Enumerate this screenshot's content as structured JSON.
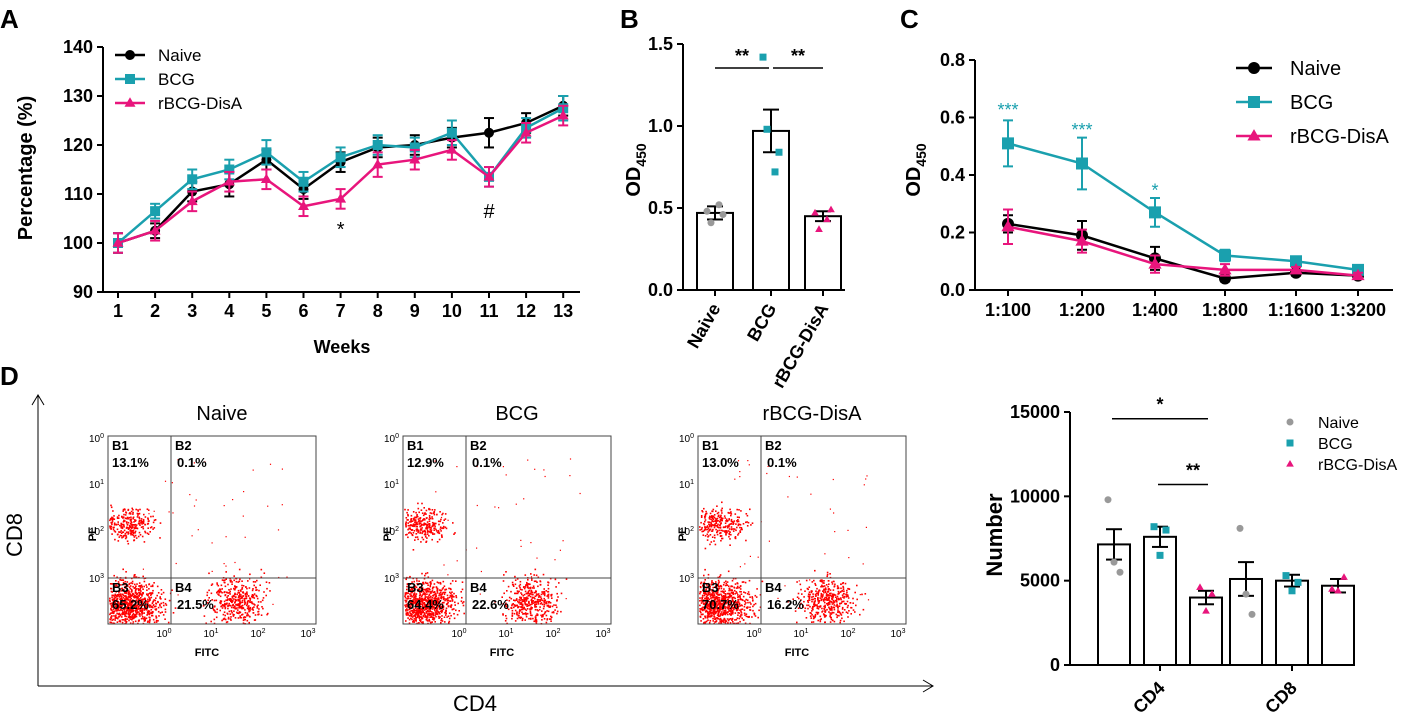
{
  "colors": {
    "naive": "#000000",
    "bcg": "#1aa0ae",
    "disa": "#e8157c",
    "flow": "#ff0000",
    "grey": "#999999"
  },
  "chart_data": [
    {
      "panel": "A",
      "type": "line",
      "xlabel": "Weeks",
      "ylabel": "Percentage (%)",
      "ylim": [
        90,
        140
      ],
      "yticks": [
        90,
        100,
        110,
        120,
        130,
        140
      ],
      "x": [
        1,
        2,
        3,
        4,
        5,
        6,
        7,
        8,
        9,
        10,
        11,
        12,
        13
      ],
      "series": [
        {
          "name": "Naive",
          "color_key": "naive",
          "marker": "circle",
          "values": [
            100,
            102.5,
            110.5,
            112,
            117,
            111,
            116.5,
            119.5,
            120,
            121.5,
            122.5,
            124.5,
            128
          ],
          "err": [
            2,
            1.5,
            2,
            2.5,
            2,
            2,
            2,
            2,
            2,
            2,
            3,
            2,
            2
          ]
        },
        {
          "name": "BCG",
          "color_key": "bcg",
          "marker": "square",
          "values": [
            100,
            106.5,
            113,
            115,
            118.5,
            112.5,
            117.5,
            120,
            119.5,
            122.5,
            113.5,
            123.5,
            127.5
          ],
          "err": [
            2,
            1.5,
            2,
            2,
            2.5,
            2,
            2,
            2,
            2,
            2.5,
            2,
            2,
            2.5
          ]
        },
        {
          "name": "rBCG-DisA",
          "color_key": "disa",
          "marker": "triangle",
          "values": [
            100,
            102.5,
            108.5,
            112.5,
            113,
            107.5,
            109,
            116,
            117,
            119,
            113.5,
            122.5,
            126
          ],
          "err": [
            2,
            2,
            2,
            2,
            2,
            2,
            2,
            2.5,
            2,
            2,
            2,
            2,
            2
          ]
        }
      ],
      "annotations": [
        {
          "text": "*",
          "x": 7
        },
        {
          "text": "#",
          "x": 11
        }
      ]
    },
    {
      "panel": "B",
      "type": "bar",
      "ylabel": "OD",
      "ylabel_sub": "450",
      "ylim": [
        0,
        1.5
      ],
      "yticks": [
        "0.0",
        "0.5",
        "1.0",
        "1.5"
      ],
      "categories": [
        "Naive",
        "BCG",
        "rBCG-DisA"
      ],
      "values": [
        0.47,
        0.97,
        0.45
      ],
      "err": [
        0.04,
        0.13,
        0.03
      ],
      "points": [
        [
          0.48,
          0.41,
          0.52,
          0.46
        ],
        [
          1.42,
          0.98,
          0.72,
          0.84
        ],
        [
          0.47,
          0.37,
          0.43,
          0.49
        ]
      ],
      "point_colors": [
        "grey",
        "bcg",
        "disa"
      ],
      "significance": [
        {
          "from": 0,
          "to": 1,
          "text": "**"
        },
        {
          "from": 1,
          "to": 2,
          "text": "**"
        }
      ]
    },
    {
      "panel": "C",
      "type": "line",
      "ylabel": "OD",
      "ylabel_sub": "450",
      "ylim": [
        0,
        0.8
      ],
      "yticks": [
        "0.0",
        "0.2",
        "0.4",
        "0.6",
        "0.8"
      ],
      "categories": [
        "1:100",
        "1:200",
        "1:400",
        "1:800",
        "1:1600",
        "1:3200"
      ],
      "series": [
        {
          "name": "Naive",
          "color_key": "naive",
          "marker": "circle",
          "values": [
            0.23,
            0.19,
            0.11,
            0.04,
            0.06,
            0.05
          ],
          "err": [
            0.03,
            0.05,
            0.04,
            0.01,
            0.01,
            0.01
          ]
        },
        {
          "name": "BCG",
          "color_key": "bcg",
          "marker": "square",
          "values": [
            0.51,
            0.44,
            0.27,
            0.12,
            0.1,
            0.07
          ],
          "err": [
            0.08,
            0.09,
            0.05,
            0.02,
            0.01,
            0.01
          ]
        },
        {
          "name": "rBCG-DisA",
          "color_key": "disa",
          "marker": "triangle",
          "values": [
            0.22,
            0.17,
            0.09,
            0.07,
            0.07,
            0.05
          ],
          "err": [
            0.06,
            0.04,
            0.03,
            0.02,
            0.01,
            0.01
          ]
        }
      ],
      "annotations": [
        {
          "text": "***",
          "x": 0,
          "y": 0.64
        },
        {
          "text": "***",
          "x": 1,
          "y": 0.57
        },
        {
          "text": "*",
          "x": 2,
          "y": 0.36
        }
      ]
    },
    {
      "panel": "D-bar",
      "type": "bar",
      "ylabel": "Number",
      "ylim": [
        0,
        15000
      ],
      "yticks": [
        "0",
        "5000",
        "10000",
        "15000"
      ],
      "groups": [
        "CD4",
        "CD8"
      ],
      "series": [
        {
          "name": "Naive",
          "color_key": "grey",
          "marker": "circle",
          "values": [
            7150,
            5100
          ],
          "err": [
            900,
            1000
          ],
          "points": [
            [
              9800,
              6100,
              5500
            ],
            [
              8100,
              4200,
              3000
            ]
          ]
        },
        {
          "name": "BCG",
          "color_key": "bcg",
          "marker": "square",
          "values": [
            7600,
            5000
          ],
          "err": [
            600,
            350
          ],
          "points": [
            [
              8200,
              6500,
              8000
            ],
            [
              5300,
              4400,
              4900
            ]
          ]
        },
        {
          "name": "rBCG-DisA",
          "color_key": "disa",
          "marker": "triangle",
          "values": [
            4000,
            4700
          ],
          "err": [
            400,
            400
          ],
          "points": [
            [
              4600,
              3200,
              4200
            ],
            [
              4500,
              4400,
              5200
            ]
          ]
        }
      ],
      "significance": [
        {
          "text": "*",
          "from_series": 0,
          "to_series": 2,
          "group": 0,
          "y": 14600
        },
        {
          "text": "**",
          "from_series": 1,
          "to_series": 2,
          "group": 0,
          "y": 10700
        }
      ]
    }
  ],
  "panels": {
    "a": "A",
    "b": "B",
    "c": "C",
    "d": "D"
  },
  "flow": {
    "x_axis_label": "CD4",
    "y_axis_label": "CD8",
    "x_channel": "FITC",
    "y_channel": "PE",
    "decade_ticks": [
      {
        "base": "10",
        "exp": "0"
      },
      {
        "base": "10",
        "exp": "1"
      },
      {
        "base": "10",
        "exp": "2"
      },
      {
        "base": "10",
        "exp": "3"
      }
    ],
    "plots": [
      {
        "title": "Naive",
        "b1": "B1",
        "b1_pct": "13.1%",
        "b2": "B2",
        "b2_pct": "0.1%",
        "b3": "B3",
        "b3_pct": "65.2%",
        "b4": "B4",
        "b4_pct": "21.5%"
      },
      {
        "title": "BCG",
        "b1": "B1",
        "b1_pct": "12.9%",
        "b2": "B2",
        "b2_pct": "0.1%",
        "b3": "B3",
        "b3_pct": "64.4%",
        "b4": "B4",
        "b4_pct": "22.6%"
      },
      {
        "title": "rBCG-DisA",
        "b1": "B1",
        "b1_pct": "13.0%",
        "b2": "B2",
        "b2_pct": "0.1%",
        "b3": "B3",
        "b3_pct": "70.7%",
        "b4": "B4",
        "b4_pct": "16.2%"
      }
    ]
  }
}
